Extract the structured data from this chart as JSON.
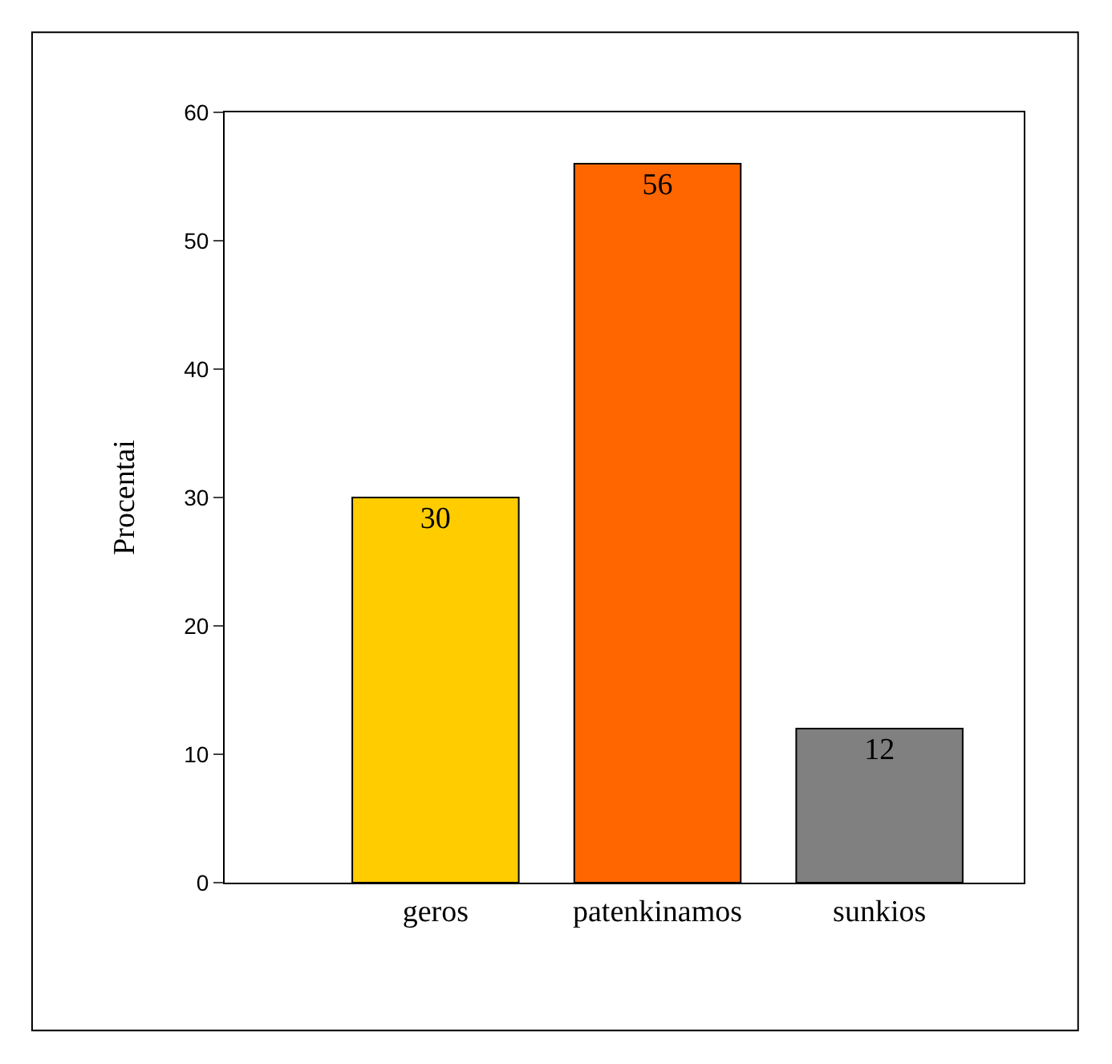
{
  "chart_data": {
    "type": "bar",
    "ylabel": "Procentai",
    "categories": [
      "geros",
      "patenkinamos",
      "sunkios"
    ],
    "values": [
      30,
      56,
      12
    ],
    "colors": [
      "#ffcc00",
      "#ff6600",
      "#808080"
    ],
    "ylim": [
      0,
      60
    ],
    "yticks": [
      0,
      10,
      20,
      30,
      40,
      50,
      60
    ],
    "data_labels": true
  }
}
